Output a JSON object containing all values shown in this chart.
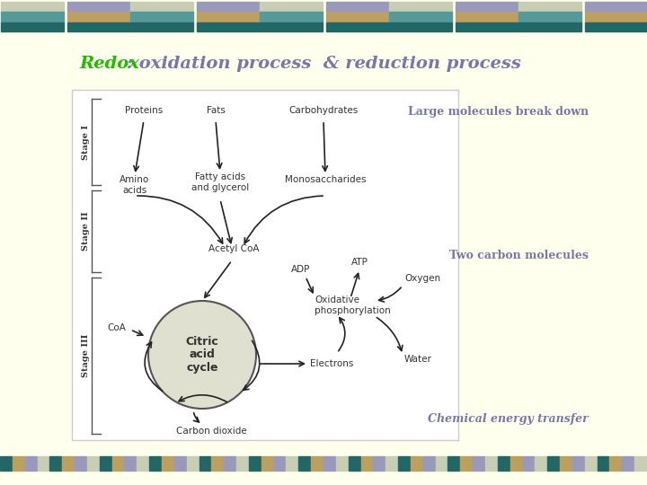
{
  "bg_color": "#FFFFEE",
  "title_redox": "Redox",
  "title_rest": " : oxidation process  & reduction process",
  "title_redox_color": "#22BB00",
  "title_rest_color": "#7777AA",
  "label_large": "Large molecules break down",
  "label_two_carbon": "Two carbon molecules",
  "label_chemical": "Chemical energy transfer",
  "label_color": "#7777AA",
  "header_row1_colors": [
    "#C8CEB0",
    "#9999BB",
    "#C8CEB0",
    "#9999BB"
  ],
  "header_row2_colors": [
    "#559999",
    "#C8A060",
    "#559999",
    "#C8A060"
  ],
  "header_row3_colors": [
    "#226666",
    "#226666",
    "#226666",
    "#226666"
  ],
  "footer_colors": [
    "#226666",
    "#C8A060",
    "#9999BB",
    "#C8CEB0"
  ],
  "diagram_bg": "#FFFFFF",
  "text_color": "#333333",
  "arrow_color": "#222222",
  "citric_fill": "#E0E0D0"
}
